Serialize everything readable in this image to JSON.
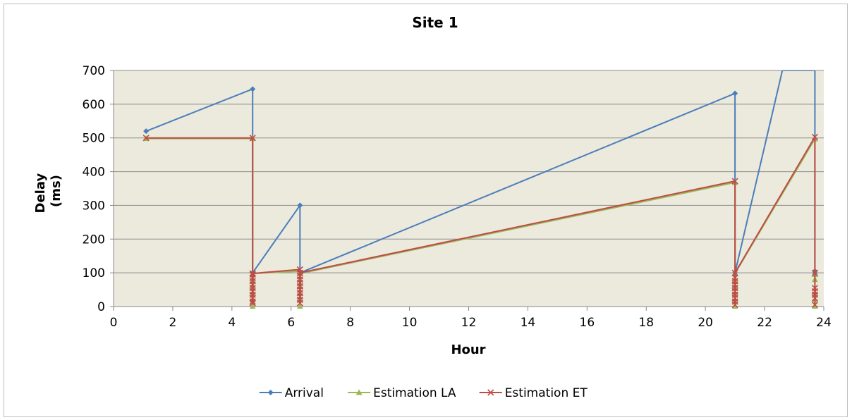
{
  "chart_data": {
    "type": "line",
    "title": "Site 1",
    "xlabel": "Hour",
    "ylabel": [
      "Delay",
      "(ms)"
    ],
    "xlim": [
      0,
      24
    ],
    "ylim": [
      0,
      700
    ],
    "xticks": [
      0,
      2,
      4,
      6,
      8,
      10,
      12,
      14,
      16,
      18,
      20,
      22,
      24
    ],
    "yticks": [
      0,
      100,
      200,
      300,
      400,
      500,
      600,
      700
    ],
    "grid": "horizontal",
    "plot_background": "#ece9dd",
    "legend_position": "bottom",
    "series": [
      {
        "name": "Arrival",
        "color": "#4a7ebb",
        "marker": "diamond",
        "points": [
          [
            1.1,
            520
          ],
          [
            4.7,
            645
          ],
          [
            4.7,
            100
          ],
          [
            6.3,
            300
          ],
          [
            6.3,
            100
          ],
          [
            21.0,
            632
          ],
          [
            21.0,
            100
          ],
          [
            22.6,
            700
          ],
          [
            23.7,
            700
          ],
          [
            23.7,
            105
          ],
          [
            23.7,
            100
          ]
        ]
      },
      {
        "name": "Estimation LA",
        "color": "#98b954",
        "marker": "triangle",
        "points": [
          [
            1.1,
            498
          ],
          [
            4.7,
            498
          ],
          [
            4.7,
            0
          ],
          [
            4.7,
            98
          ],
          [
            6.3,
            105
          ],
          [
            6.3,
            0
          ],
          [
            6.3,
            98
          ],
          [
            21.0,
            368
          ],
          [
            21.0,
            0
          ],
          [
            21.0,
            98
          ],
          [
            23.7,
            497
          ],
          [
            23.7,
            0
          ]
        ]
      },
      {
        "name": "Estimation ET",
        "color": "#be4b48",
        "marker": "x",
        "points": [
          [
            1.1,
            500
          ],
          [
            4.7,
            500
          ],
          [
            4.7,
            10
          ],
          [
            4.7,
            98
          ],
          [
            6.3,
            110
          ],
          [
            6.3,
            10
          ],
          [
            6.3,
            100
          ],
          [
            21.0,
            372
          ],
          [
            21.0,
            5
          ],
          [
            21.0,
            100
          ],
          [
            23.7,
            503
          ],
          [
            23.7,
            5
          ]
        ]
      }
    ],
    "drop_markers": {
      "Arrival": [
        [
          23.7,
          105
        ]
      ],
      "Estimation LA": [
        [
          4.7,
          20
        ],
        [
          4.7,
          40
        ],
        [
          4.7,
          60
        ],
        [
          4.7,
          80
        ],
        [
          6.3,
          20
        ],
        [
          6.3,
          40
        ],
        [
          6.3,
          60
        ],
        [
          6.3,
          80
        ],
        [
          21.0,
          20
        ],
        [
          21.0,
          40
        ],
        [
          21.0,
          60
        ],
        [
          21.0,
          80
        ],
        [
          23.7,
          20
        ],
        [
          23.7,
          40
        ],
        [
          23.7,
          80
        ],
        [
          23.7,
          95
        ]
      ],
      "Estimation ET": [
        [
          4.7,
          15
        ],
        [
          4.7,
          25
        ],
        [
          4.7,
          35
        ],
        [
          4.7,
          45
        ],
        [
          4.7,
          55
        ],
        [
          4.7,
          65
        ],
        [
          4.7,
          75
        ],
        [
          4.7,
          85
        ],
        [
          4.7,
          95
        ],
        [
          6.3,
          20
        ],
        [
          6.3,
          30
        ],
        [
          6.3,
          40
        ],
        [
          6.3,
          50
        ],
        [
          6.3,
          60
        ],
        [
          6.3,
          70
        ],
        [
          6.3,
          80
        ],
        [
          6.3,
          90
        ],
        [
          21.0,
          15
        ],
        [
          21.0,
          25
        ],
        [
          21.0,
          35
        ],
        [
          21.0,
          45
        ],
        [
          21.0,
          55
        ],
        [
          21.0,
          65
        ],
        [
          21.0,
          75
        ],
        [
          21.0,
          85
        ],
        [
          23.7,
          25
        ],
        [
          23.7,
          35
        ],
        [
          23.7,
          45
        ],
        [
          23.7,
          55
        ],
        [
          23.7,
          100
        ]
      ]
    }
  }
}
